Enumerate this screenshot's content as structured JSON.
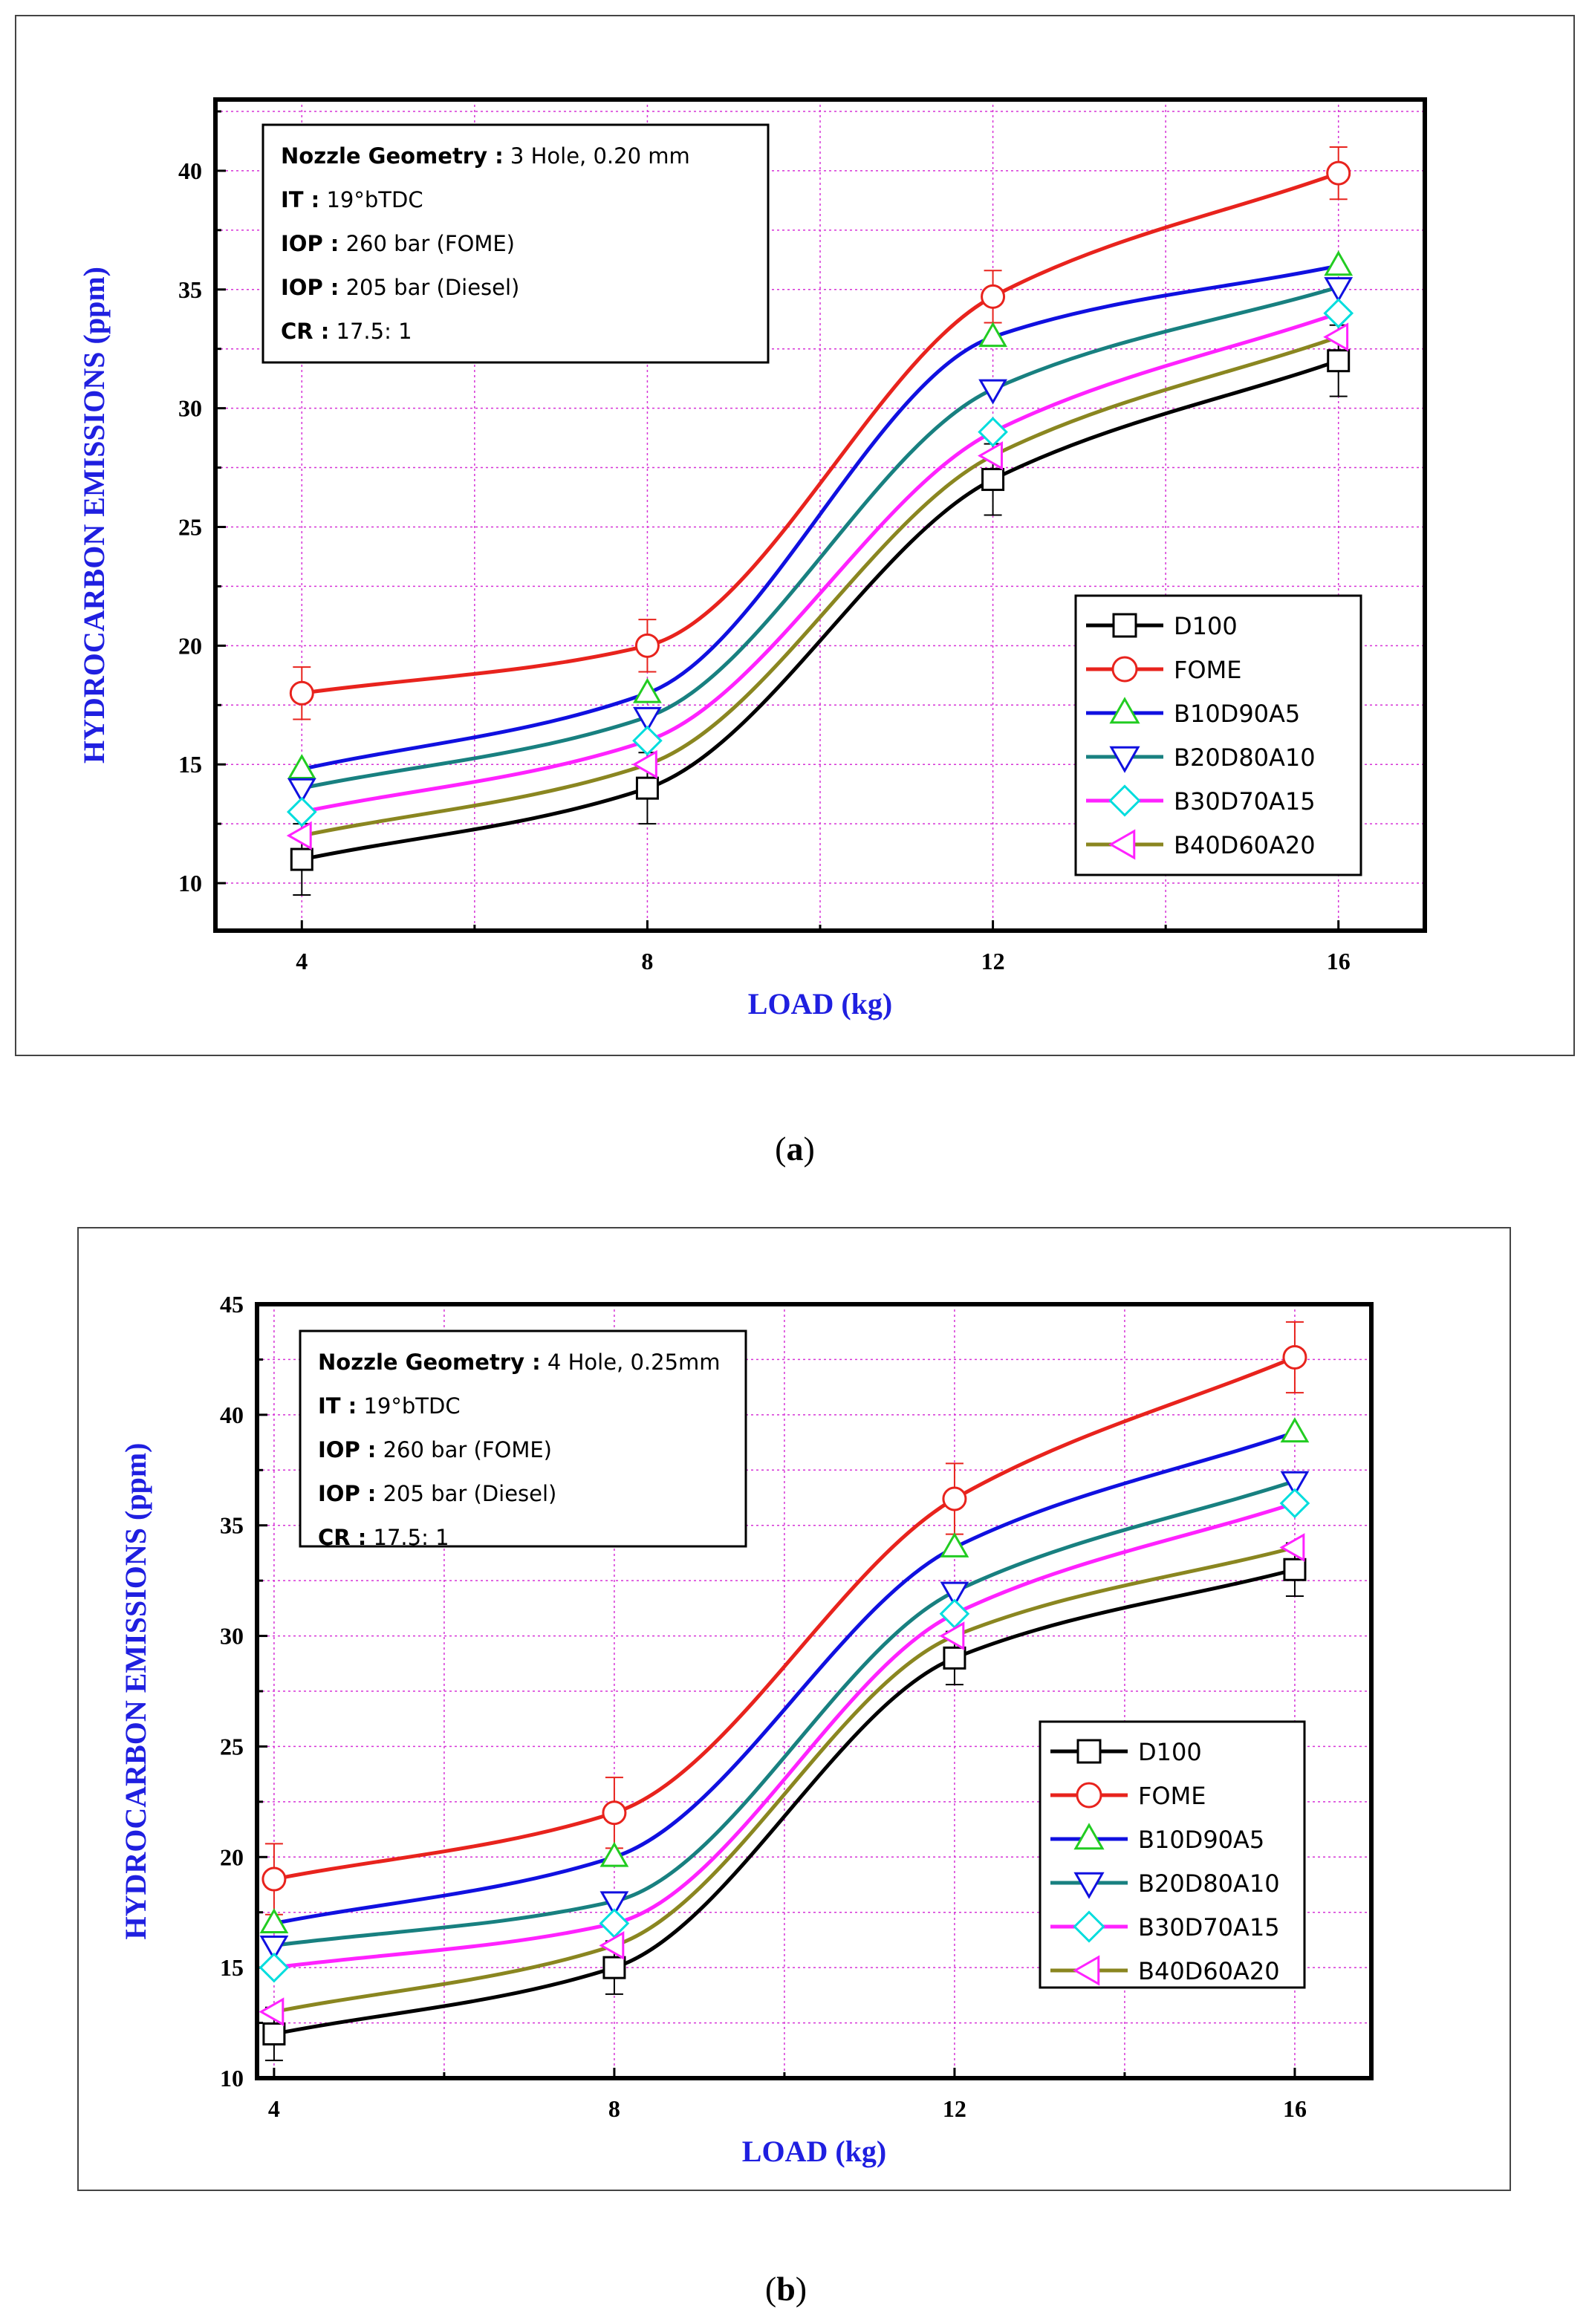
{
  "panels": [
    {
      "id": "a",
      "caption": "a",
      "info": {
        "rows": [
          {
            "key": "Nozzle Geometry :",
            "value": " 3 Hole, 0.20 mm"
          },
          {
            "key": "IT    :",
            "value": " 19°bTDC"
          },
          {
            "key": "IOP :",
            "value": " 260 bar (FOME)"
          },
          {
            "key": "IOP :",
            "value": " 205 bar (Diesel)"
          },
          {
            "key": "CR  :",
            "value": " 17.5: 1"
          }
        ]
      },
      "chart_data": {
        "type": "line",
        "xlabel": "LOAD (kg)",
        "ylabel": "HYDROCARBON EMISSIONS (ppm)",
        "x": [
          4,
          8,
          12,
          16
        ],
        "xlim": [
          3,
          17
        ],
        "ylim": [
          8,
          43
        ],
        "xticks": [
          4,
          8,
          12,
          16
        ],
        "yticks": [
          10,
          15,
          20,
          25,
          30,
          35,
          40
        ],
        "grid": true,
        "legend_position": "bottom-right",
        "series": [
          {
            "name": "D100",
            "values": [
              11,
              14,
              27,
              32
            ],
            "color": "#000000",
            "marker": "square",
            "marker_color": "#000000",
            "error": [
              1.5,
              1.5,
              1.5,
              1.5
            ]
          },
          {
            "name": "FOME",
            "values": [
              18,
              20,
              34.7,
              39.9
            ],
            "color": "#e8231d",
            "marker": "circle",
            "marker_color": "#e8231d",
            "error": [
              1.1,
              1.1,
              1.1,
              1.1
            ]
          },
          {
            "name": "B10D90A5",
            "values": [
              14.8,
              18,
              33,
              36
            ],
            "color": "#1010e0",
            "marker": "triangle-up",
            "marker_color": "#22cc22",
            "error": [
              1,
              1,
              1,
              1
            ]
          },
          {
            "name": "B20D80A10",
            "values": [
              14,
              17,
              30.8,
              35.1
            ],
            "color": "#188080",
            "marker": "triangle-down",
            "marker_color": "#1010e0",
            "error": [
              1,
              1,
              1,
              1
            ]
          },
          {
            "name": "B30D70A15",
            "values": [
              13,
              16,
              29,
              34
            ],
            "color": "#ff22ff",
            "marker": "diamond",
            "marker_color": "#00dddd",
            "error": [
              1,
              1,
              1,
              1
            ]
          },
          {
            "name": "B40D60A20",
            "values": [
              12,
              15,
              28,
              33
            ],
            "color": "#8a8620",
            "marker": "triangle-left",
            "marker_color": "#ff22ff",
            "error": [
              1,
              1,
              1,
              1
            ]
          }
        ]
      }
    },
    {
      "id": "b",
      "caption": "b",
      "info": {
        "rows": [
          {
            "key": "Nozzle Geometry :",
            "value": " 4 Hole, 0.25mm"
          },
          {
            "key": "IT    :",
            "value": " 19°bTDC"
          },
          {
            "key": "IOP :",
            "value": " 260 bar (FOME)"
          },
          {
            "key": "IOP :",
            "value": " 205 bar (Diesel)"
          },
          {
            "key": "CR  :",
            "value": " 17.5: 1"
          }
        ]
      },
      "chart_data": {
        "type": "line",
        "xlabel": "LOAD (kg)",
        "ylabel": "HYDROCARBON EMISSIONS (ppm)",
        "x": [
          4,
          8,
          12,
          16
        ],
        "xlim": [
          3.8,
          16.9
        ],
        "ylim": [
          10,
          45
        ],
        "xticks": [
          4,
          8,
          12,
          16
        ],
        "yticks": [
          10,
          15,
          20,
          25,
          30,
          35,
          40,
          45
        ],
        "grid": true,
        "legend_position": "bottom-right",
        "series": [
          {
            "name": "D100",
            "values": [
              12,
              15,
              29,
              33
            ],
            "color": "#000000",
            "marker": "square",
            "marker_color": "#000000",
            "error": [
              1.2,
              1.2,
              1.2,
              1.2
            ]
          },
          {
            "name": "FOME",
            "values": [
              19,
              22,
              36.2,
              42.6
            ],
            "color": "#e8231d",
            "marker": "circle",
            "marker_color": "#e8231d",
            "error": [
              1.6,
              1.6,
              1.6,
              1.6
            ]
          },
          {
            "name": "B10D90A5",
            "values": [
              17,
              20,
              34,
              39.2
            ],
            "color": "#1010e0",
            "marker": "triangle-up",
            "marker_color": "#22cc22",
            "error": [
              1.2,
              1.2,
              1.2,
              1.2
            ]
          },
          {
            "name": "B20D80A10",
            "values": [
              16,
              18,
              32,
              37
            ],
            "color": "#188080",
            "marker": "triangle-down",
            "marker_color": "#1010e0",
            "error": [
              1.2,
              1.2,
              1.2,
              1.2
            ]
          },
          {
            "name": "B30D70A15",
            "values": [
              15,
              17,
              31,
              36
            ],
            "color": "#ff22ff",
            "marker": "diamond",
            "marker_color": "#00dddd",
            "error": [
              1.1,
              1.1,
              1.1,
              1.1
            ]
          },
          {
            "name": "B40D60A20",
            "values": [
              13,
              16,
              30,
              34
            ],
            "color": "#8a8620",
            "marker": "triangle-left",
            "marker_color": "#ff22ff",
            "error": [
              1.1,
              1.1,
              1.1,
              1.1
            ]
          }
        ]
      }
    }
  ]
}
